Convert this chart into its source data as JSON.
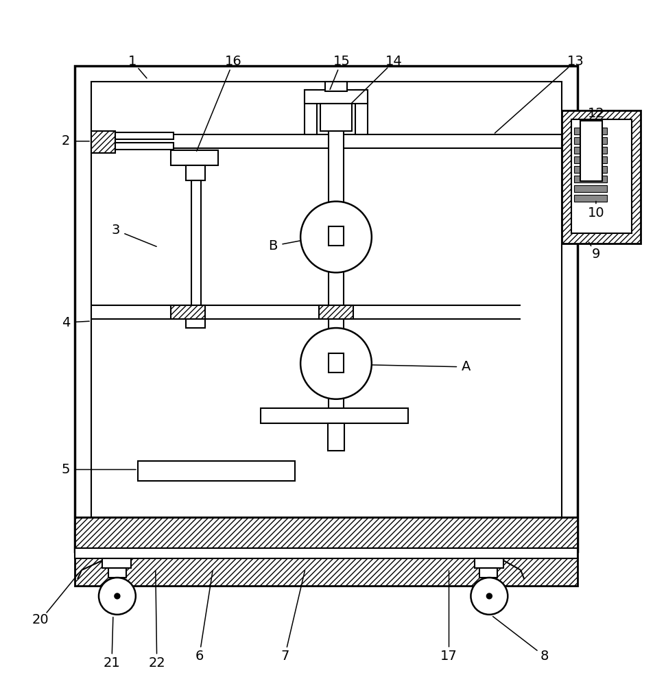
{
  "bg": "#ffffff",
  "figsize": [
    9.71,
    10.0
  ],
  "dpi": 100
}
